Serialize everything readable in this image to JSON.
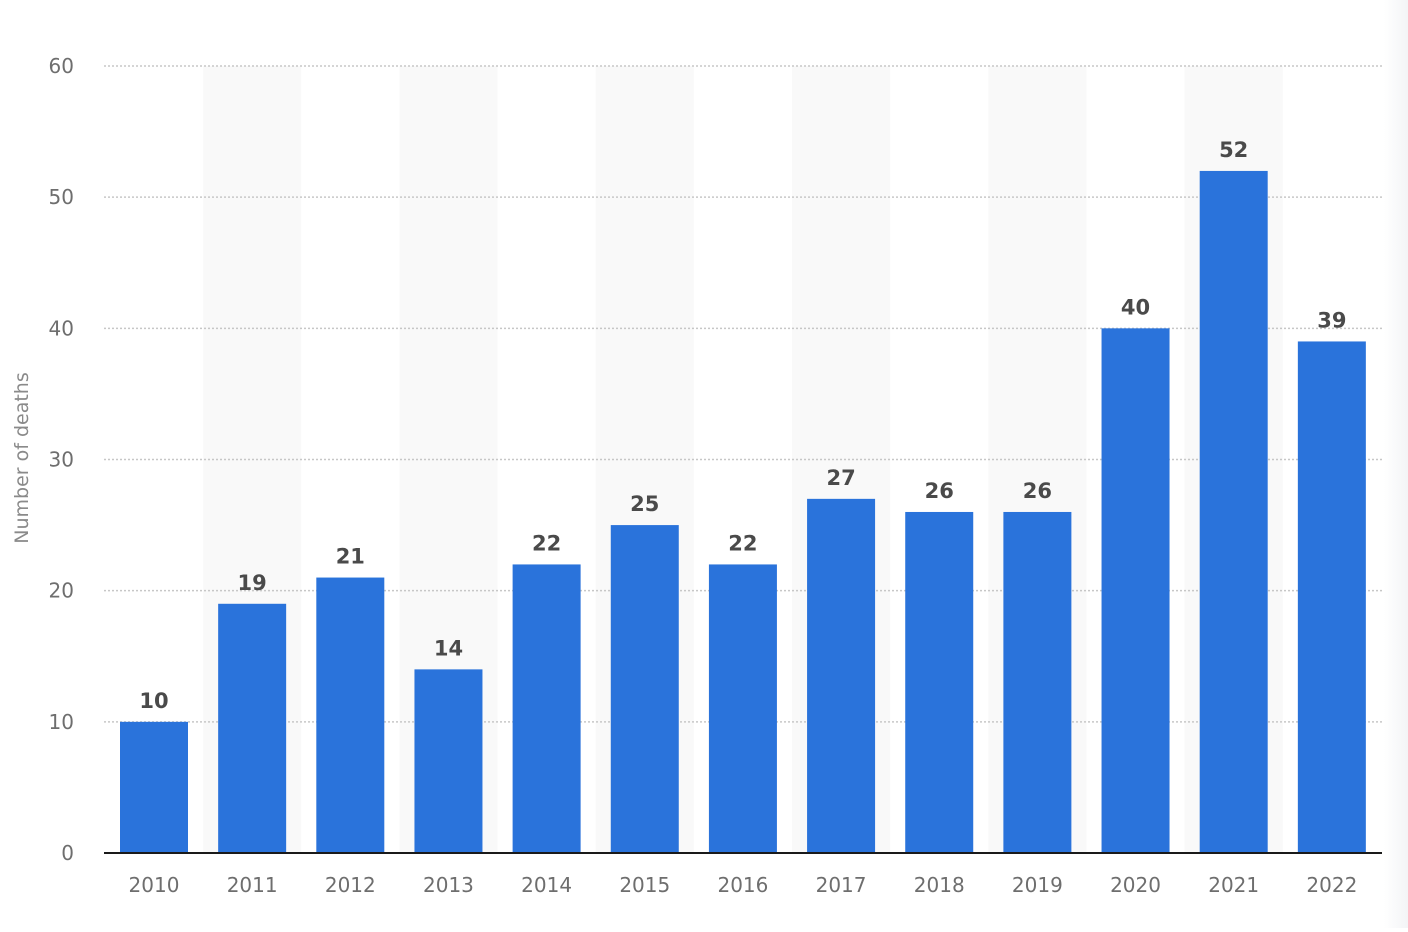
{
  "chart_data": {
    "type": "bar",
    "categories": [
      "2010",
      "2011",
      "2012",
      "2013",
      "2014",
      "2015",
      "2016",
      "2017",
      "2018",
      "2019",
      "2020",
      "2021",
      "2022"
    ],
    "values": [
      10,
      19,
      21,
      14,
      22,
      25,
      22,
      27,
      26,
      26,
      40,
      52,
      39
    ],
    "title": "",
    "xlabel": "",
    "ylabel": "Number of deaths",
    "ylim": [
      0,
      60
    ],
    "yticks": [
      0,
      10,
      20,
      30,
      40,
      50,
      60
    ],
    "grid": true,
    "legend": "none",
    "data_labels": true,
    "colors": {
      "bar": "#2a73db",
      "grid": "#c7c7c7",
      "axis": "#1a1a1a",
      "band": "#f9f9f9"
    }
  }
}
